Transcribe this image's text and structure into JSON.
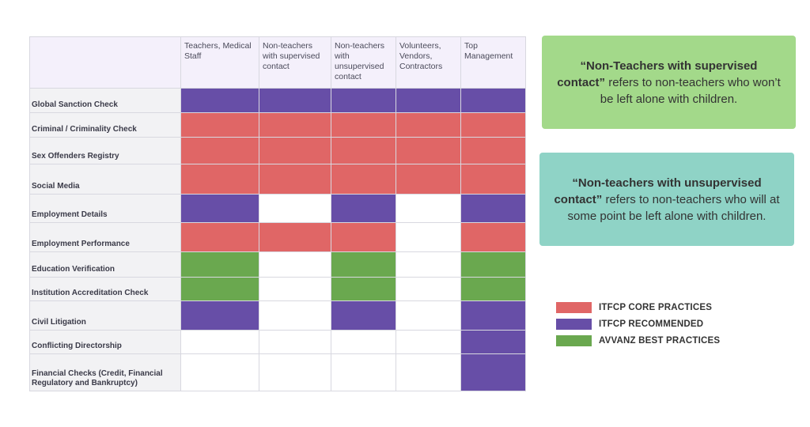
{
  "colors": {
    "core": "#e06666",
    "recommended": "#674ea7",
    "best": "#6aa84f",
    "none": "#ffffff"
  },
  "matrix": {
    "columns": [
      "Teachers, Medical Staff",
      "Non-teachers with supervised contact",
      "Non-teachers with unsupervised contact",
      "Volunteers, Vendors, Contractors",
      "Top Management"
    ],
    "rows": [
      {
        "label": "Global Sanction Check",
        "cells": [
          "recommended",
          "recommended",
          "recommended",
          "recommended",
          "recommended"
        ]
      },
      {
        "label": "Criminal / Criminality Check",
        "cells": [
          "core",
          "core",
          "core",
          "core",
          "core"
        ]
      },
      {
        "label": "Sex Offenders Registry",
        "cells": [
          "core",
          "core",
          "core",
          "core",
          "core"
        ]
      },
      {
        "label": "Social Media",
        "cells": [
          "core",
          "core",
          "core",
          "core",
          "core"
        ]
      },
      {
        "label": "Employment Details",
        "cells": [
          "recommended",
          "none",
          "recommended",
          "none",
          "recommended"
        ]
      },
      {
        "label": "Employment Performance",
        "cells": [
          "core",
          "core",
          "core",
          "none",
          "core"
        ]
      },
      {
        "label": "Education Verification",
        "cells": [
          "best",
          "none",
          "best",
          "none",
          "best"
        ]
      },
      {
        "label": "Institution Accreditation Check",
        "cells": [
          "best",
          "none",
          "best",
          "none",
          "best"
        ]
      },
      {
        "label": "Civil Litigation",
        "cells": [
          "recommended",
          "none",
          "recommended",
          "none",
          "recommended"
        ]
      },
      {
        "label": "Conflicting Directorship",
        "cells": [
          "none",
          "none",
          "none",
          "none",
          "recommended"
        ]
      },
      {
        "label": "Financial Checks (Credit, Financial Regulatory and Bankruptcy)",
        "cells": [
          "none",
          "none",
          "none",
          "none",
          "recommended"
        ]
      }
    ]
  },
  "notes": {
    "supervised": {
      "bold": "“Non-Teachers with supervised contact”",
      "rest": " refers to non-teachers who won’t be left alone with children."
    },
    "unsupervised": {
      "bold": "“Non-teachers with unsupervised contact”",
      "rest": " refers to non-teachers who will at some point be left alone with children."
    }
  },
  "legend": [
    {
      "label": "ITFCP CORE PRACTICES",
      "color": "#e06666"
    },
    {
      "label": "ITFCP RECOMMENDED",
      "color": "#674ea7"
    },
    {
      "label": "AVVANZ BEST PRACTICES",
      "color": "#6aa84f"
    }
  ]
}
